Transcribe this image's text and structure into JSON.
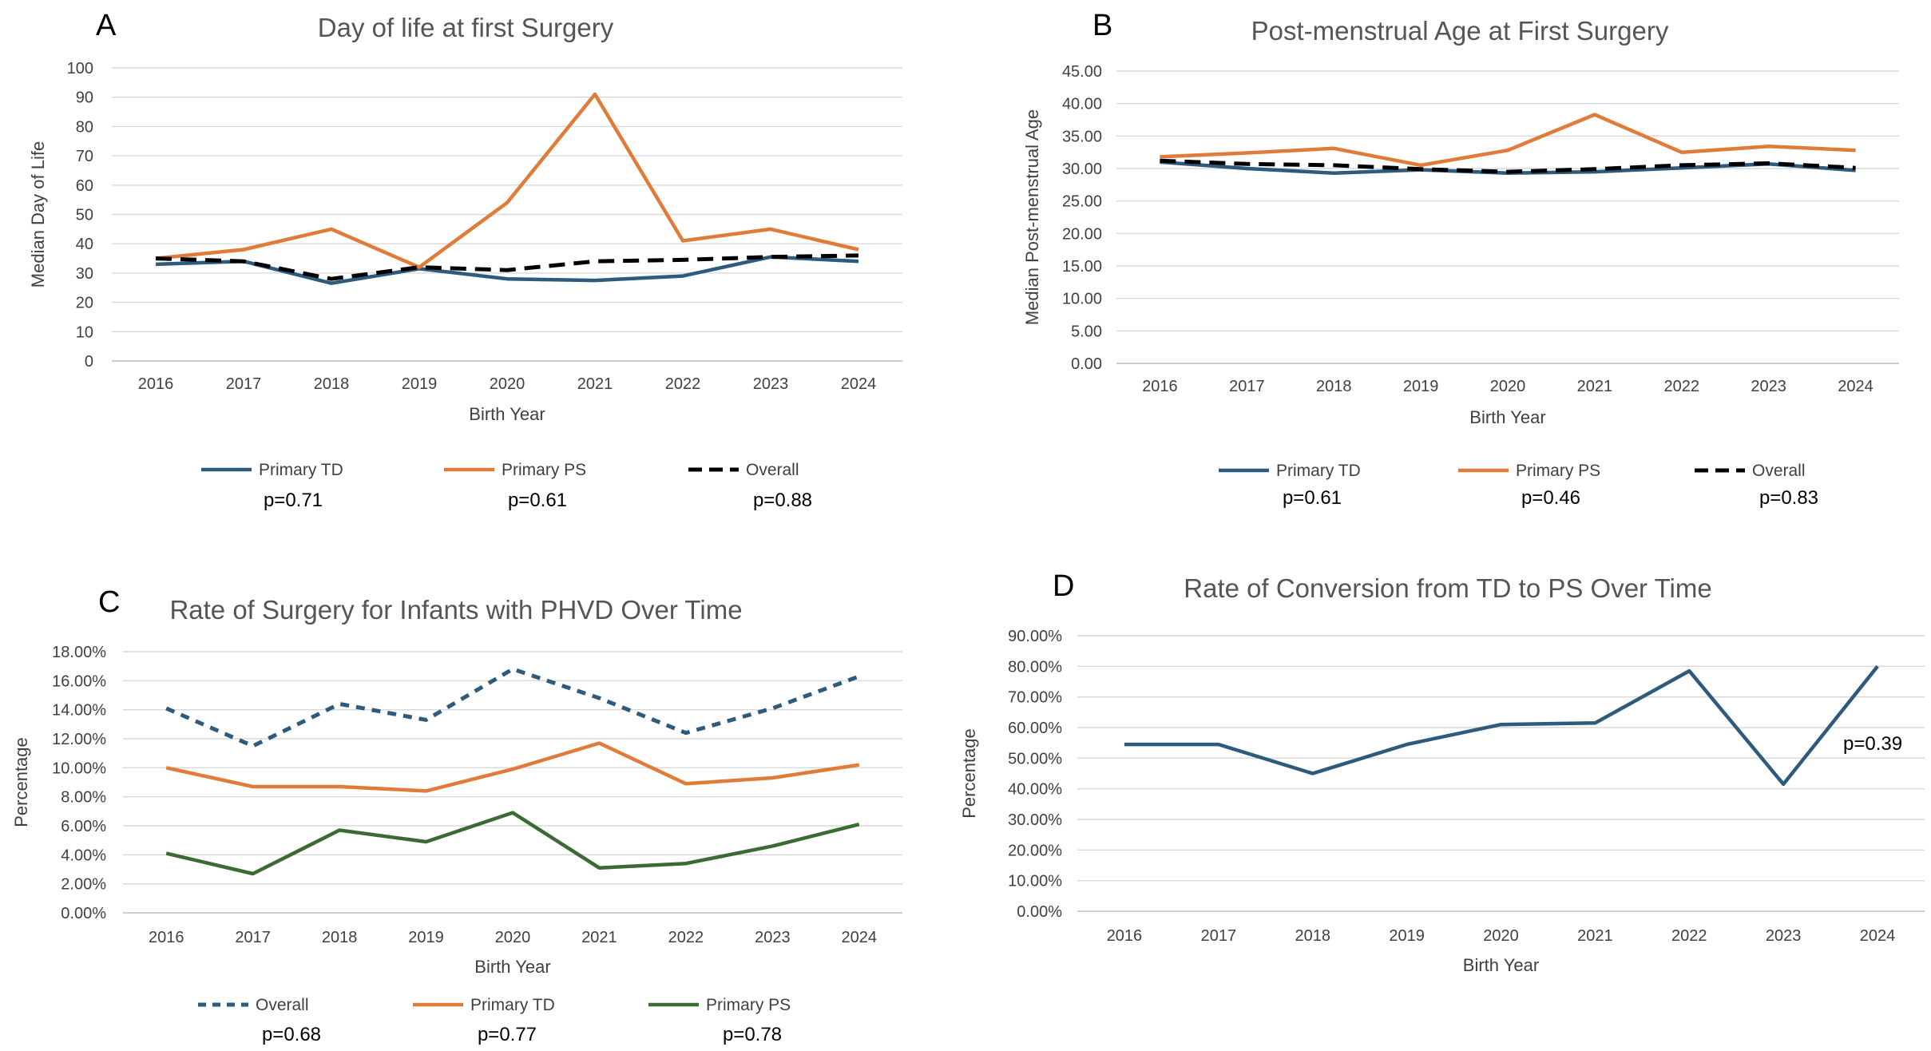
{
  "chart_data": [
    {
      "type": "line",
      "panel_label": "A",
      "title": "Day of life at first Surgery",
      "xlabel": "Birth Year",
      "ylabel": "Median Day of Life",
      "categories": [
        "2016",
        "2017",
        "2018",
        "2019",
        "2020",
        "2021",
        "2022",
        "2023",
        "2024"
      ],
      "ylim": [
        0,
        100
      ],
      "yticks": [
        "0",
        "10",
        "20",
        "30",
        "40",
        "50",
        "60",
        "70",
        "80",
        "90",
        "100"
      ],
      "grid": true,
      "legend_position": "bottom",
      "series": [
        {
          "name": "Primary TD",
          "color": "#2e5a7c",
          "style": "solid",
          "values": [
            33,
            34,
            26.5,
            31.5,
            28,
            27.5,
            29,
            35.5,
            34
          ],
          "pvalue": "p=0.71"
        },
        {
          "name": "Primary PS",
          "color": "#e07b39",
          "style": "solid",
          "values": [
            35,
            38,
            45,
            32,
            54,
            91,
            41,
            45,
            38
          ],
          "pvalue": "p=0.61"
        },
        {
          "name": "Overall",
          "color": "#000000",
          "style": "dashed",
          "values": [
            35,
            34,
            28,
            32,
            31,
            34,
            34.5,
            35.5,
            36
          ],
          "pvalue": "p=0.88"
        }
      ]
    },
    {
      "type": "line",
      "panel_label": "B",
      "title": "Post-menstrual Age at First Surgery",
      "xlabel": "Birth Year",
      "ylabel": "Median Post-menstrual Age",
      "categories": [
        "2016",
        "2017",
        "2018",
        "2019",
        "2020",
        "2021",
        "2022",
        "2023",
        "2024"
      ],
      "ylim": [
        0,
        45
      ],
      "yticks": [
        "0.00",
        "5.00",
        "10.00",
        "15.00",
        "20.00",
        "25.00",
        "30.00",
        "35.00",
        "40.00",
        "45.00"
      ],
      "grid": true,
      "legend_position": "bottom",
      "series": [
        {
          "name": "Primary TD",
          "color": "#2e5a7c",
          "style": "solid",
          "values": [
            31,
            30,
            29.3,
            29.8,
            29.3,
            29.5,
            30.1,
            30.7,
            29.7
          ],
          "pvalue": "p=0.61"
        },
        {
          "name": "Primary PS",
          "color": "#e07b39",
          "style": "solid",
          "values": [
            31.8,
            32.4,
            33.1,
            30.5,
            32.8,
            38.3,
            32.5,
            33.4,
            32.8
          ],
          "pvalue": "p=0.46"
        },
        {
          "name": "Overall",
          "color": "#000000",
          "style": "dashed",
          "values": [
            31.2,
            30.7,
            30.5,
            29.9,
            29.5,
            29.9,
            30.5,
            30.8,
            30.1
          ],
          "pvalue": "p=0.83"
        }
      ]
    },
    {
      "type": "line",
      "panel_label": "C",
      "title": "Rate of Surgery for Infants with PHVD Over Time",
      "xlabel": "Birth Year",
      "ylabel": "Percentage",
      "categories": [
        "2016",
        "2017",
        "2018",
        "2019",
        "2020",
        "2021",
        "2022",
        "2023",
        "2024"
      ],
      "ylim": [
        0,
        18
      ],
      "yticks": [
        "0.00%",
        "2.00%",
        "4.00%",
        "6.00%",
        "8.00%",
        "10.00%",
        "12.00%",
        "14.00%",
        "16.00%",
        "18.00%"
      ],
      "grid": true,
      "legend_position": "bottom",
      "series": [
        {
          "name": "Overall",
          "color": "#2e5a7c",
          "style": "dotted",
          "values": [
            14.1,
            11.5,
            14.4,
            13.3,
            16.8,
            14.8,
            12.4,
            14.1,
            16.3
          ],
          "pvalue": "p=0.68"
        },
        {
          "name": "Primary TD",
          "color": "#e07b39",
          "style": "solid",
          "values": [
            10.0,
            8.7,
            8.7,
            8.4,
            9.9,
            11.7,
            8.9,
            9.3,
            10.2
          ],
          "pvalue": "p=0.77"
        },
        {
          "name": "Primary PS",
          "color": "#3a6b32",
          "style": "solid",
          "values": [
            4.1,
            2.7,
            5.7,
            4.9,
            6.9,
            3.1,
            3.4,
            4.6,
            6.1
          ],
          "pvalue": "p=0.78"
        }
      ]
    },
    {
      "type": "line",
      "panel_label": "D",
      "title": "Rate of Conversion from TD to PS Over Time",
      "xlabel": "Birth Year",
      "ylabel": "Percentage",
      "categories": [
        "2016",
        "2017",
        "2018",
        "2019",
        "2020",
        "2021",
        "2022",
        "2023",
        "2024"
      ],
      "ylim": [
        0,
        90
      ],
      "yticks": [
        "0.00%",
        "10.00%",
        "20.00%",
        "30.00%",
        "40.00%",
        "50.00%",
        "60.00%",
        "70.00%",
        "80.00%",
        "90.00%"
      ],
      "grid": true,
      "annotation": "p=0.39",
      "series": [
        {
          "color": "#2e5a7c",
          "style": "solid",
          "values": [
            54.5,
            54.5,
            45,
            54.5,
            61,
            61.5,
            78.5,
            41.5,
            80
          ]
        }
      ]
    }
  ]
}
